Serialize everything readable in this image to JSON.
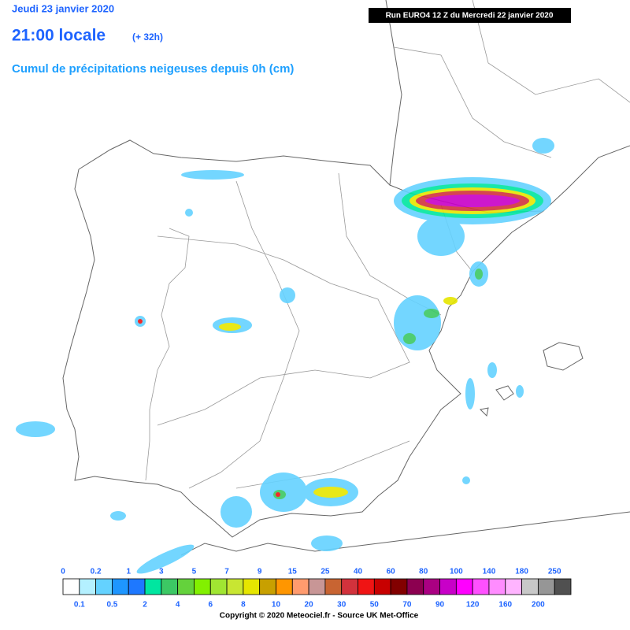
{
  "header": {
    "date": "Jeudi 23 janvier 2020",
    "time": "21:00 locale",
    "lead": "(+ 32h)",
    "subtitle": "Cumul de précipitations neigeuses depuis 0h (cm)",
    "run": "Run EURO4 12 Z du Mercredi 22 janvier 2020"
  },
  "legend": {
    "thresholds": [
      0,
      0.1,
      0.2,
      0.5,
      1,
      2,
      3,
      4,
      5,
      6,
      7,
      8,
      9,
      10,
      15,
      20,
      25,
      30,
      40,
      50,
      60,
      70,
      80,
      90,
      100,
      120,
      140,
      160,
      180,
      200,
      250
    ],
    "colors": [
      "#ffffff",
      "#b4f0ff",
      "#64d2ff",
      "#1e96ff",
      "#1e78ff",
      "#00e6a0",
      "#3cc864",
      "#64d23c",
      "#82f000",
      "#a0e632",
      "#c8e632",
      "#e6e600",
      "#c8a000",
      "#ff9600",
      "#ff9b6e",
      "#c89696",
      "#c86432",
      "#d2323c",
      "#f01414",
      "#c80000",
      "#820000",
      "#8c0050",
      "#aa0082",
      "#c800c8",
      "#ff00ff",
      "#ff50ff",
      "#ff8cff",
      "#ffb4ff",
      "#c8c8c8",
      "#969696",
      "#505050"
    ]
  },
  "copyright": "Copyright © 2020 Meteociel.fr - Source UK Met-Office"
}
